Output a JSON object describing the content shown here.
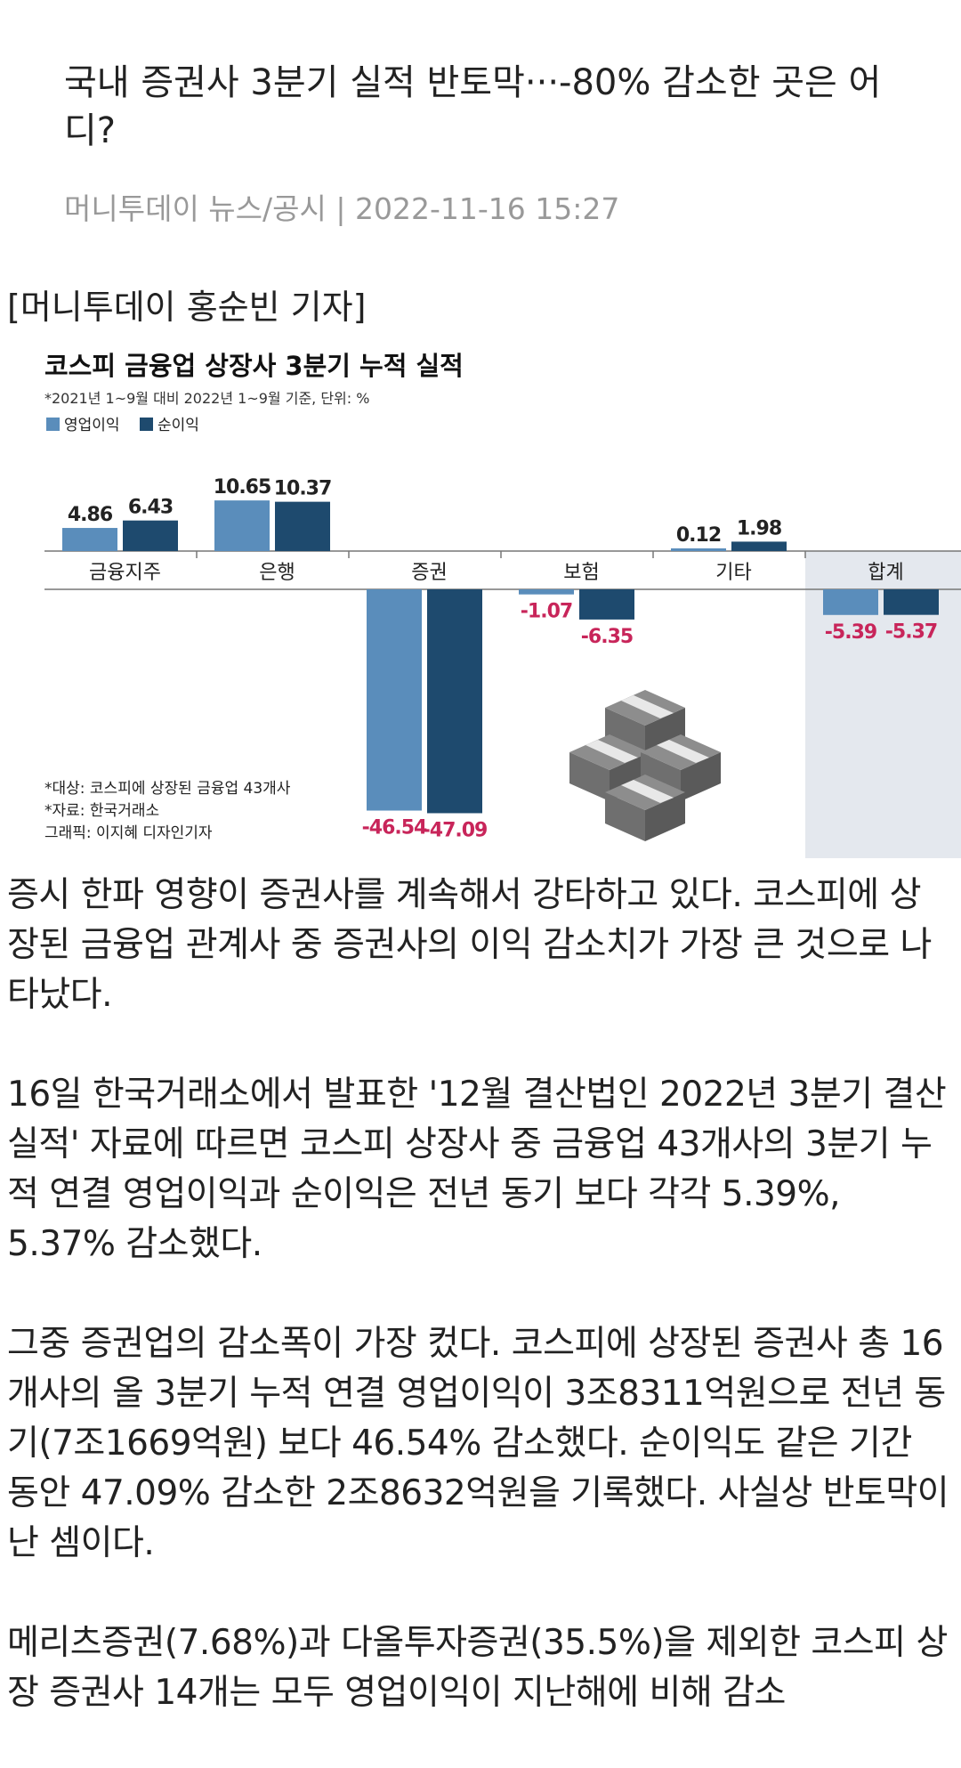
{
  "article": {
    "title": "국내 증권사 3분기 실적 반토막···-80% 감소한 곳은 어디?",
    "source": "머니투데이 뉴스/공시",
    "separator": "|",
    "datetime": "2022-11-16 15:27",
    "byline": "[머니투데이 홍순빈 기자]",
    "paragraphs": [
      "증시 한파 영향이 증권사를 계속해서 강타하고 있다. 코스피에 상장된 금융업 관계사 중 증권사의 이익 감소치가 가장 큰 것으로 나타났다.",
      "16일 한국거래소에서 발표한 '12월 결산법인 2022년 3분기 결산실적' 자료에 따르면 코스피 상장사 중 금융업 43개사의 3분기 누적 연결 영업이익과 순이익은 전년 동기 보다 각각 5.39%, 5.37% 감소했다.",
      "그중 증권업의 감소폭이 가장 컸다. 코스피에 상장된 증권사 총 16개사의 올 3분기 누적 연결 영업이익이 3조8311억원으로 전년 동기(7조1669억원) 보다 46.54% 감소했다. 순이익도 같은 기간 동안 47.09% 감소한 2조8632억원을 기록했다. 사실상 반토막이 난 셈이다.",
      "메리츠증권(7.68%)과 다올투자증권(35.5%)을 제외한 코스피 상장 증권사 14개는 모두 영업이익이 지난해에 비해 감소"
    ]
  },
  "chart_data": {
    "type": "bar",
    "title": "코스피 금융업 상장사 3분기 누적 실적",
    "subtitle": "*2021년 1~9월 대비 2022년 1~9월 기준, 단위: %",
    "categories": [
      "금융지주",
      "은행",
      "증권",
      "보험",
      "기타",
      "합계"
    ],
    "series": [
      {
        "name": "영업이익",
        "values": [
          4.86,
          10.65,
          -46.54,
          -1.07,
          0.12,
          -5.39
        ]
      },
      {
        "name": "순이익",
        "values": [
          6.43,
          10.37,
          -47.09,
          -6.35,
          1.98,
          -5.37
        ]
      }
    ],
    "value_labels": [
      [
        "4.86",
        "10.65",
        "-46.54",
        "-1.07",
        "0.12",
        "-5.39"
      ],
      [
        "6.43",
        "10.37",
        "-47.09",
        "-6.35",
        "1.98",
        "-5.37"
      ]
    ],
    "notes": [
      "*대상: 코스피에 상장된 금융업 43개사",
      "*자료: 한국거래소",
      "그래픽: 이지혜 디자인기자"
    ],
    "legend_position": "top-left",
    "colors": {
      "series": [
        "#5a8dbb",
        "#1e4a6e"
      ],
      "negative_label": "#c8255a",
      "positive_label": "#222222",
      "highlight_band": "#e4e8ee"
    },
    "illustration": "money-stack-icon"
  }
}
